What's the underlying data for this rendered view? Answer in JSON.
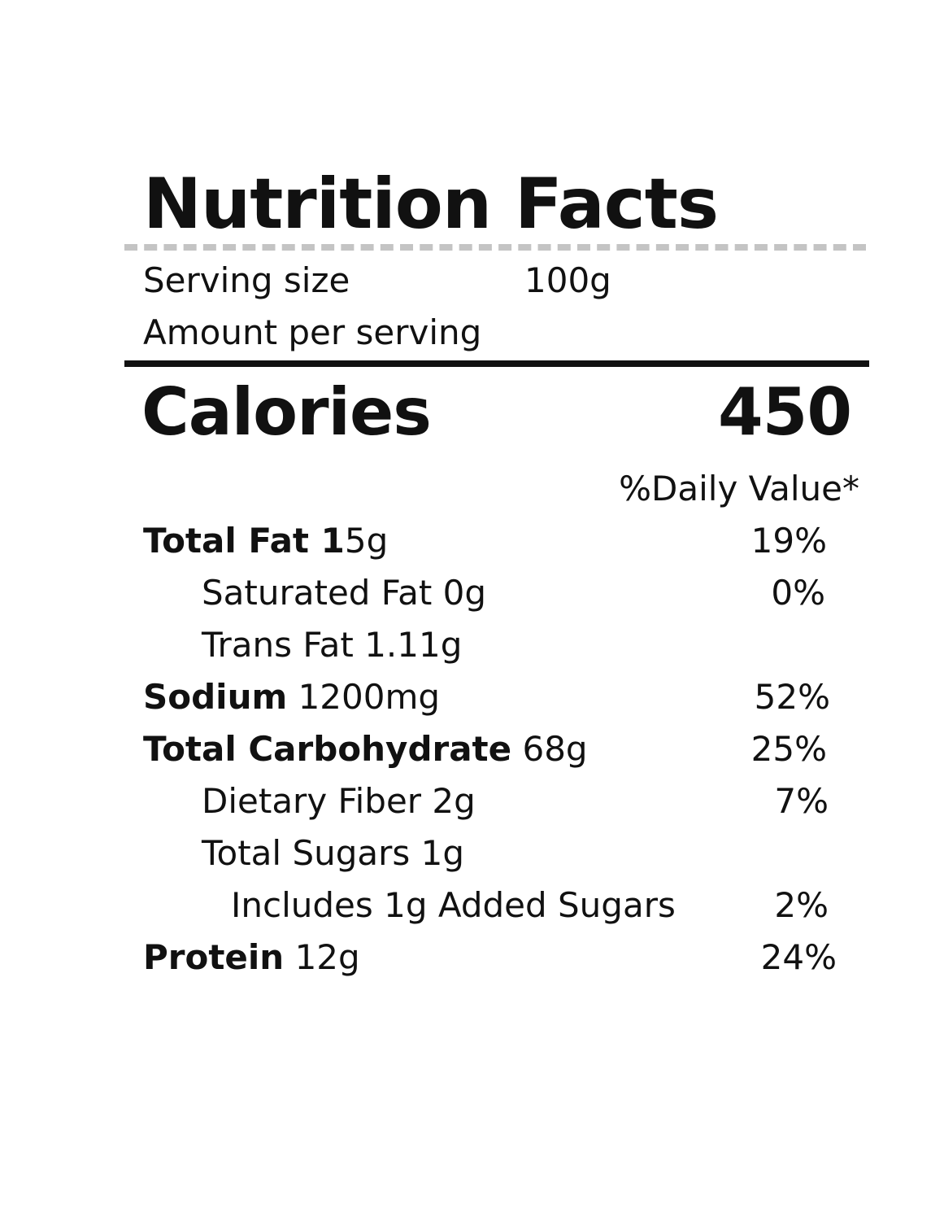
{
  "title": "Nutrition Facts",
  "serving": {
    "label": "Serving size",
    "value": "100g"
  },
  "amount_per_serving": "Amount per serving",
  "calories": {
    "label": "Calories",
    "value": "450"
  },
  "daily_value_header": "%Daily Value*",
  "nutrients": [
    {
      "name": "Total Fat 1",
      "amount": "5g",
      "dv": "19%"
    },
    {
      "name": "",
      "amount": "Saturated Fat 0g",
      "dv": "0%"
    },
    {
      "name": "",
      "amount": "Trans Fat 1.11g",
      "dv": ""
    },
    {
      "name": "Sodium",
      "amount": " 1200mg",
      "dv": "52%"
    },
    {
      "name": "Total Carbohydrate",
      "amount": " 68g",
      "dv": "25%"
    },
    {
      "name": "",
      "amount": "Dietary Fiber 2g",
      "dv": "7%"
    },
    {
      "name": "",
      "amount": "Total Sugars 1g",
      "dv": ""
    },
    {
      "name": "",
      "amount": "Includes 1g Added Sugars",
      "dv": "2%"
    },
    {
      "name": "Protein",
      "amount": " 12g",
      "dv": "24%"
    }
  ],
  "colors": {
    "text": "#111111",
    "dashed_rule": "#c4c4c4",
    "background": "#ffffff"
  }
}
